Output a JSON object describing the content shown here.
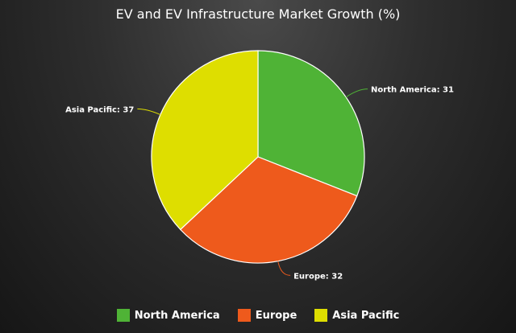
{
  "chart_data": {
    "type": "pie",
    "title": "EV and EV Infrastructure Market Growth (%)",
    "series": [
      {
        "name": "North America",
        "value": 31,
        "color": "#4fb336",
        "label": "North America: 31"
      },
      {
        "name": "Europe",
        "value": 32,
        "color": "#ee5a1c",
        "label": "Europe: 32"
      },
      {
        "name": "Asia Pacific",
        "value": 37,
        "color": "#dede00",
        "label": "Asia Pacific: 37"
      }
    ],
    "legend_placement": "bottom",
    "start_angle": "top, clockwise"
  }
}
